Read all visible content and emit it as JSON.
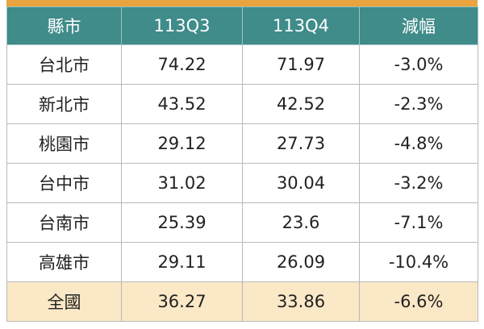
{
  "table": {
    "header": [
      "縣市",
      "113Q3",
      "113Q4",
      "減幅"
    ],
    "rows": [
      [
        "台北市",
        "74.22",
        "71.97",
        "-3.0%"
      ],
      [
        "新北市",
        "43.52",
        "42.52",
        "-2.3%"
      ],
      [
        "桃園市",
        "29.12",
        "27.73",
        "-4.8%"
      ],
      [
        "台中市",
        "31.02",
        "30.04",
        "-3.2%"
      ],
      [
        "台南市",
        "25.39",
        "23.6",
        "-7.1%"
      ],
      [
        "高雄市",
        "29.11",
        "26.09",
        "-10.4%"
      ],
      [
        "全國",
        "36.27",
        "33.86",
        "-6.6%"
      ]
    ]
  }
}
